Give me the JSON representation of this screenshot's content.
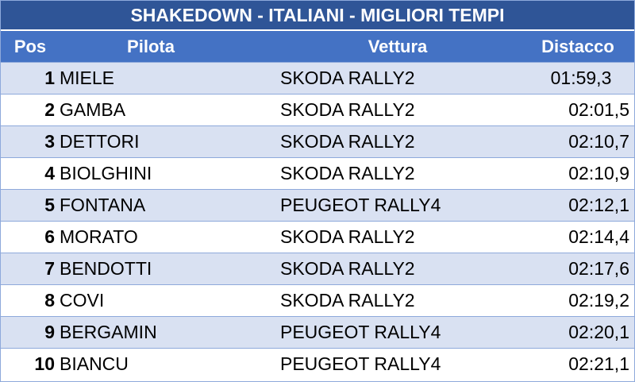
{
  "title": "SHAKEDOWN - ITALIANI - MIGLIORI TEMPI",
  "columns": {
    "pos": "Pos",
    "pilota": "Pilota",
    "vettura": "Vettura",
    "distacco": "Distacco"
  },
  "rows": [
    {
      "pos": "1",
      "pilota": "MIELE",
      "vettura": "SKODA RALLY2",
      "distacco": "01:59,3"
    },
    {
      "pos": "2",
      "pilota": "GAMBA",
      "vettura": "SKODA RALLY2",
      "distacco": "02:01,5"
    },
    {
      "pos": "3",
      "pilota": "DETTORI",
      "vettura": "SKODA RALLY2",
      "distacco": "02:10,7"
    },
    {
      "pos": "4",
      "pilota": "BIOLGHINI",
      "vettura": "SKODA RALLY2",
      "distacco": "02:10,9"
    },
    {
      "pos": "5",
      "pilota": "FONTANA",
      "vettura": "PEUGEOT RALLY4",
      "distacco": "02:12,1"
    },
    {
      "pos": "6",
      "pilota": "MORATO",
      "vettura": "SKODA RALLY2",
      "distacco": "02:14,4"
    },
    {
      "pos": "7",
      "pilota": "BENDOTTI",
      "vettura": "SKODA RALLY2",
      "distacco": "02:17,6"
    },
    {
      "pos": "8",
      "pilota": "COVI",
      "vettura": "SKODA RALLY2",
      "distacco": "02:19,2"
    },
    {
      "pos": "9",
      "pilota": "BERGAMIN",
      "vettura": "PEUGEOT RALLY4",
      "distacco": "02:20,1"
    },
    {
      "pos": "10",
      "pilota": "BIANCU",
      "vettura": "PEUGEOT RALLY4",
      "distacco": "02:21,1"
    }
  ],
  "colors": {
    "title_bg": "#2f5597",
    "header_bg": "#4472c4",
    "band_row": "#d9e1f2",
    "plain_row": "#ffffff"
  }
}
